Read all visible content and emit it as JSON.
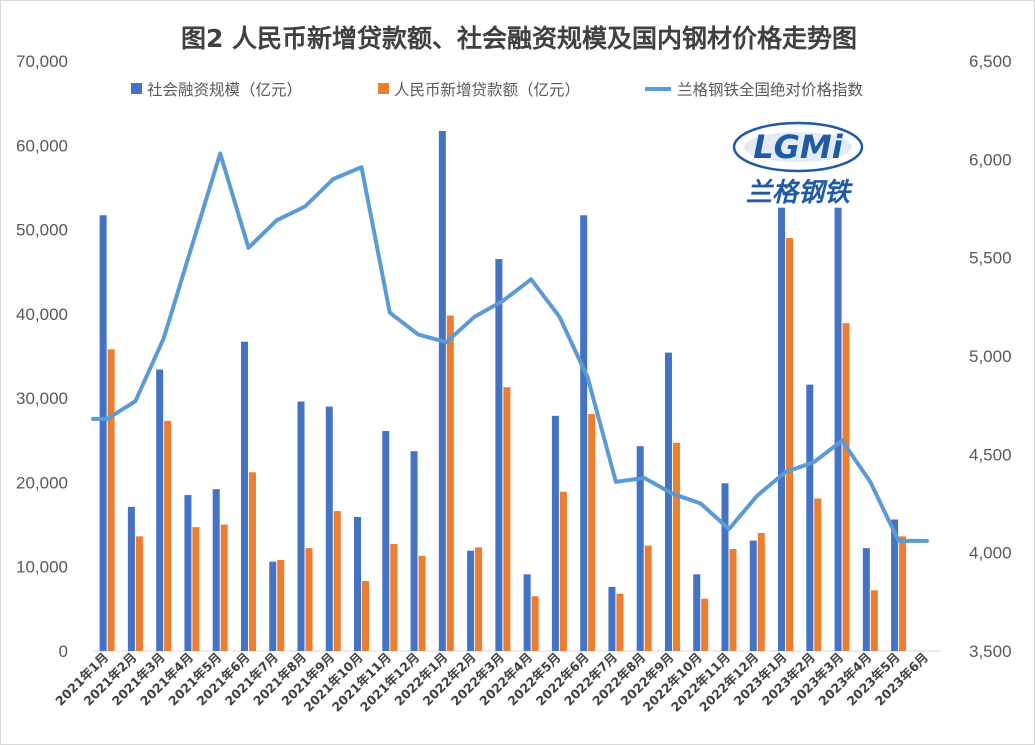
{
  "chart_data": {
    "type": "bar+line",
    "title": "图2 人民币新增贷款额、社会融资规模及国内钢材价格走势图",
    "categories": [
      "2021年1月",
      "2021年2月",
      "2021年3月",
      "2021年4月",
      "2021年5月",
      "2021年6月",
      "2021年7月",
      "2021年8月",
      "2021年9月",
      "2021年10月",
      "2021年11月",
      "2021年12月",
      "2022年1月",
      "2022年2月",
      "2022年3月",
      "2022年4月",
      "2022年5月",
      "2022年6月",
      "2022年7月",
      "2022年8月",
      "2022年9月",
      "2022年10月",
      "2022年11月",
      "2022年12月",
      "2023年1月",
      "2023年2月",
      "2023年3月",
      "2023年4月",
      "2023年5月",
      "2023年6月"
    ],
    "series": [
      {
        "name": "社会融资规模（亿元）",
        "kind": "bar",
        "axis": "left",
        "color": "#4472C4",
        "values": [
          51700,
          17100,
          33400,
          18500,
          19200,
          36700,
          10600,
          29600,
          29000,
          15900,
          26100,
          23700,
          61700,
          11900,
          46500,
          9100,
          27900,
          51700,
          7600,
          24300,
          35400,
          9100,
          19900,
          13100,
          52600,
          31600,
          52600,
          12200,
          15600,
          null
        ]
      },
      {
        "name": "人民币新增贷款额（亿元）",
        "kind": "bar",
        "axis": "left",
        "color": "#ED7D31",
        "values": [
          35800,
          13600,
          27300,
          14700,
          15000,
          21200,
          10800,
          12200,
          16600,
          8300,
          12700,
          11300,
          39800,
          12300,
          31300,
          6500,
          18900,
          28100,
          6800,
          12500,
          24700,
          6200,
          12100,
          14000,
          49000,
          18100,
          38900,
          7200,
          13600,
          null
        ]
      },
      {
        "name": "兰格钢铁全国绝对价格指数",
        "kind": "line",
        "axis": "right",
        "color": "#5B9BD5",
        "values": [
          4680,
          4770,
          5090,
          5560,
          6030,
          5550,
          5690,
          5760,
          5900,
          5960,
          5220,
          5110,
          5070,
          5200,
          5280,
          5390,
          5200,
          4890,
          4360,
          4380,
          4300,
          4250,
          4120,
          4290,
          4410,
          4460,
          4570,
          4360,
          4060,
          4060
        ]
      }
    ],
    "yleft": {
      "min": 0,
      "max": 70000,
      "step": 10000
    },
    "yright": {
      "min": 3500,
      "max": 6500,
      "step": 500
    },
    "grid": false,
    "legend": "top"
  },
  "logo": {
    "top_text": "LGMi",
    "bottom_text": "兰格钢铁"
  },
  "colors": {
    "bar1": "#4472C4",
    "bar2": "#ED7D31",
    "line": "#5B9BD5",
    "logo_blue": "#1F5AA6"
  }
}
